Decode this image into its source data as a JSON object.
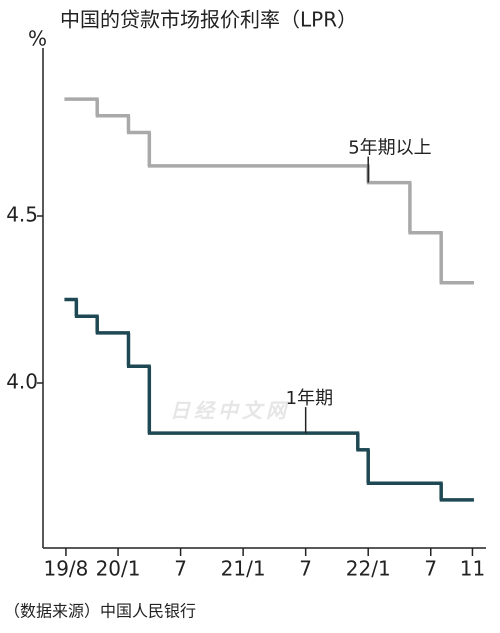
{
  "chart_data": {
    "type": "step",
    "title": "中国的贷款市场报价利率（LPR）",
    "y_unit": "%",
    "source": "（数据来源）中国人民银行",
    "watermark": "日经中文网",
    "xlim": [
      -2.2,
      40.3
    ],
    "xticks": [
      {
        "value": 0,
        "label": "19/8"
      },
      {
        "value": 5,
        "label": "20/1"
      },
      {
        "value": 11,
        "label": "7"
      },
      {
        "value": 17,
        "label": "21/1"
      },
      {
        "value": 23,
        "label": "7"
      },
      {
        "value": 29,
        "label": "22/1"
      },
      {
        "value": 35,
        "label": "7"
      },
      {
        "value": 39,
        "label": "11"
      }
    ],
    "ylim": [
      3.5,
      5.0
    ],
    "yticks": [
      {
        "value": 4.0,
        "label": "4.0"
      },
      {
        "value": 4.5,
        "label": "4.5"
      }
    ],
    "series": [
      {
        "name": "5年期以上",
        "color": "#a9a9a9",
        "x": [
          0,
          3,
          6,
          8,
          29,
          33,
          36,
          39
        ],
        "values": [
          4.85,
          4.8,
          4.75,
          4.65,
          4.6,
          4.45,
          4.3,
          4.3
        ],
        "label_at": 29
      },
      {
        "name": "1年期",
        "color": "#1e4853",
        "x": [
          0,
          1,
          3,
          6,
          8,
          28,
          29,
          36,
          39
        ],
        "values": [
          4.25,
          4.2,
          4.15,
          4.05,
          3.85,
          3.8,
          3.7,
          3.65,
          3.65
        ],
        "label_at": 23
      }
    ]
  }
}
